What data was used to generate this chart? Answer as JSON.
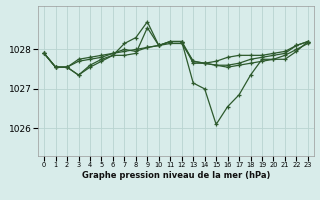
{
  "bg_color": "#d8ecea",
  "grid_color": "#b8d4d0",
  "line_color": "#2d5a2d",
  "title": "Graphe pression niveau de la mer (hPa)",
  "yticks": [
    1026,
    1027,
    1028
  ],
  "ylim": [
    1025.3,
    1029.1
  ],
  "xlim": [
    -0.5,
    23.5
  ],
  "series": [
    [
      1027.9,
      1027.55,
      1027.55,
      1027.35,
      1027.6,
      1027.75,
      1027.85,
      1027.85,
      1027.9,
      1028.55,
      1028.1,
      1028.2,
      1028.2,
      1027.65,
      1027.65,
      1027.7,
      1027.8,
      1027.85,
      1027.85,
      1027.85,
      1027.9,
      1027.95,
      1028.1,
      1028.2
    ],
    [
      1027.9,
      1027.55,
      1027.55,
      1027.7,
      1027.75,
      1027.8,
      1027.9,
      1028.0,
      1027.95,
      1028.05,
      1028.1,
      1028.2,
      1028.2,
      1027.7,
      1027.65,
      1027.6,
      1027.6,
      1027.65,
      1027.75,
      1027.8,
      1027.85,
      1027.9,
      1028.1,
      1028.2
    ],
    [
      1027.9,
      1027.55,
      1027.55,
      1027.75,
      1027.8,
      1027.85,
      1027.9,
      1027.95,
      1028.0,
      1028.05,
      1028.1,
      1028.15,
      1028.15,
      1027.7,
      1027.65,
      1027.6,
      1027.55,
      1027.6,
      1027.65,
      1027.7,
      1027.75,
      1027.85,
      1028.0,
      1028.15
    ],
    [
      1027.9,
      1027.55,
      1027.55,
      1027.35,
      1027.55,
      1027.7,
      1027.85,
      1028.15,
      1028.3,
      1028.7,
      1028.1,
      1028.2,
      1028.2,
      1027.15,
      1027.0,
      1026.1,
      1026.55,
      1026.85,
      1027.35,
      1027.75,
      1027.75,
      1027.75,
      1027.95,
      1028.2
    ]
  ]
}
